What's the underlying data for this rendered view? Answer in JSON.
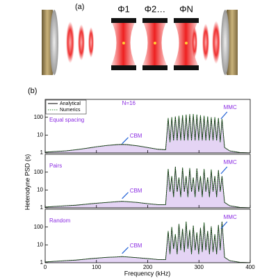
{
  "panel_a": {
    "label": "(a)",
    "phases": [
      "Φ1",
      "Φ2…",
      "ΦN"
    ]
  },
  "panel_b_label": "(b)",
  "ylabel": "Heterodyne PSD (s)",
  "xlabel": "Frequency (kHz)",
  "chart_data": [
    {
      "type": "line",
      "title": "Equal spacing",
      "note": "N=16",
      "annotations": [
        "CBM",
        "MMC"
      ],
      "legend": "upper left",
      "x": [
        0,
        20,
        40,
        60,
        80,
        100,
        120,
        140,
        150,
        160,
        180,
        200,
        220,
        235,
        240,
        243.5,
        247,
        250.5,
        254,
        257.5,
        261,
        264.5,
        268,
        271.5,
        275,
        278.5,
        282,
        285.5,
        289,
        292.5,
        296,
        299.5,
        303,
        306.5,
        310,
        313.5,
        317,
        320.5,
        324,
        327.5,
        331,
        334.5,
        338,
        341.5,
        345,
        350,
        360,
        380,
        400
      ],
      "series": [
        {
          "name": "Analytical",
          "color": "#000000",
          "values": [
            1.1,
            1.2,
            1.3,
            1.5,
            1.8,
            2.2,
            2.6,
            2.9,
            3,
            2.9,
            2.5,
            2,
            1.6,
            1.5,
            90,
            4,
            100,
            5,
            110,
            5,
            120,
            5,
            130,
            5,
            140,
            5,
            150,
            5,
            150,
            5,
            140,
            5,
            130,
            5,
            120,
            5,
            110,
            5,
            100,
            5,
            100,
            5,
            90,
            4,
            80,
            2,
            1.3,
            1.05,
            1
          ]
        },
        {
          "name": "Numerics",
          "color": "#2e8b2e",
          "values": [
            1.1,
            1.2,
            1.3,
            1.5,
            1.8,
            2.2,
            2.6,
            2.9,
            3,
            2.9,
            2.5,
            2,
            1.6,
            1.5,
            90,
            4,
            100,
            5,
            110,
            5,
            120,
            5,
            130,
            5,
            140,
            5,
            150,
            5,
            150,
            5,
            140,
            5,
            130,
            5,
            120,
            5,
            110,
            5,
            100,
            5,
            100,
            5,
            90,
            4,
            80,
            2,
            1.3,
            1.05,
            1
          ]
        }
      ],
      "xlim": [
        0,
        400
      ],
      "xticks": [
        0,
        100,
        200,
        300,
        400
      ],
      "ylim": [
        1,
        1000
      ],
      "yticks": [
        1,
        10,
        100
      ],
      "log_y": true
    },
    {
      "type": "line",
      "title": "Pairs",
      "annotations": [
        "CBM",
        "MMC"
      ],
      "x": [
        0,
        20,
        40,
        60,
        80,
        100,
        120,
        140,
        150,
        160,
        180,
        200,
        220,
        235,
        240,
        243.5,
        247,
        250.5,
        254,
        257.5,
        261,
        264.5,
        268,
        271.5,
        275,
        278.5,
        282,
        285.5,
        289,
        292.5,
        296,
        299.5,
        303,
        306.5,
        310,
        313.5,
        317,
        320.5,
        324,
        327.5,
        331,
        334.5,
        338,
        341.5,
        345,
        350,
        360,
        380,
        400
      ],
      "series": [
        {
          "name": "Analytical",
          "color": "#000000",
          "values": [
            1.1,
            1.2,
            1.3,
            1.4,
            1.6,
            1.8,
            2,
            2.2,
            2.3,
            2.2,
            2,
            1.7,
            1.5,
            1.5,
            150,
            8,
            60,
            4,
            200,
            8,
            50,
            4,
            180,
            8,
            60,
            4,
            170,
            8,
            50,
            4,
            160,
            8,
            60,
            4,
            150,
            8,
            50,
            4,
            140,
            8,
            60,
            4,
            130,
            8,
            60,
            2,
            1.3,
            1.05,
            1
          ]
        },
        {
          "name": "Numerics",
          "color": "#2e8b2e",
          "values": [
            1.1,
            1.2,
            1.3,
            1.4,
            1.6,
            1.8,
            2,
            2.2,
            2.3,
            2.2,
            2,
            1.7,
            1.5,
            1.5,
            150,
            8,
            60,
            4,
            200,
            8,
            50,
            4,
            180,
            8,
            60,
            4,
            170,
            8,
            50,
            4,
            160,
            8,
            60,
            4,
            150,
            8,
            50,
            4,
            140,
            8,
            60,
            4,
            130,
            8,
            60,
            2,
            1.3,
            1.05,
            1
          ]
        }
      ],
      "xlim": [
        0,
        400
      ],
      "xticks": [
        0,
        100,
        200,
        300,
        400
      ],
      "ylim": [
        1,
        1000
      ],
      "yticks": [
        1,
        10,
        100
      ],
      "log_y": true
    },
    {
      "type": "line",
      "title": "Random",
      "annotations": [
        "CBM",
        "MMC"
      ],
      "x": [
        0,
        20,
        40,
        60,
        80,
        100,
        120,
        140,
        150,
        160,
        180,
        200,
        220,
        235,
        240,
        243.5,
        247,
        250.5,
        254,
        257.5,
        261,
        264.5,
        268,
        271.5,
        275,
        278.5,
        282,
        285.5,
        289,
        292.5,
        296,
        299.5,
        303,
        306.5,
        310,
        313.5,
        317,
        320.5,
        324,
        327.5,
        331,
        334.5,
        338,
        341.5,
        345,
        350,
        360,
        380,
        400
      ],
      "series": [
        {
          "name": "Analytical",
          "color": "#000000",
          "values": [
            1.1,
            1.2,
            1.3,
            1.4,
            1.6,
            1.8,
            2,
            2.1,
            2.2,
            2.1,
            1.9,
            1.7,
            1.5,
            1.5,
            60,
            3,
            100,
            6,
            40,
            3,
            150,
            5,
            80,
            4,
            200,
            6,
            70,
            3,
            120,
            5,
            50,
            3,
            90,
            4,
            180,
            5,
            60,
            3,
            110,
            4,
            40,
            3,
            130,
            5,
            200,
            2,
            1.3,
            1.05,
            1
          ]
        },
        {
          "name": "Numerics",
          "color": "#2e8b2e",
          "values": [
            1.1,
            1.2,
            1.3,
            1.4,
            1.6,
            1.8,
            2,
            2.1,
            2.2,
            2.1,
            1.9,
            1.7,
            1.5,
            1.5,
            60,
            3,
            100,
            6,
            40,
            3,
            150,
            5,
            80,
            4,
            200,
            6,
            70,
            3,
            120,
            5,
            50,
            3,
            90,
            4,
            180,
            5,
            60,
            3,
            110,
            4,
            40,
            3,
            130,
            5,
            200,
            2,
            1.3,
            1.05,
            1
          ]
        }
      ],
      "xlim": [
        0,
        400
      ],
      "xticks": [
        0,
        100,
        200,
        300,
        400
      ],
      "ylim": [
        1,
        1000
      ],
      "yticks": [
        1,
        10,
        100
      ],
      "log_y": true
    }
  ]
}
